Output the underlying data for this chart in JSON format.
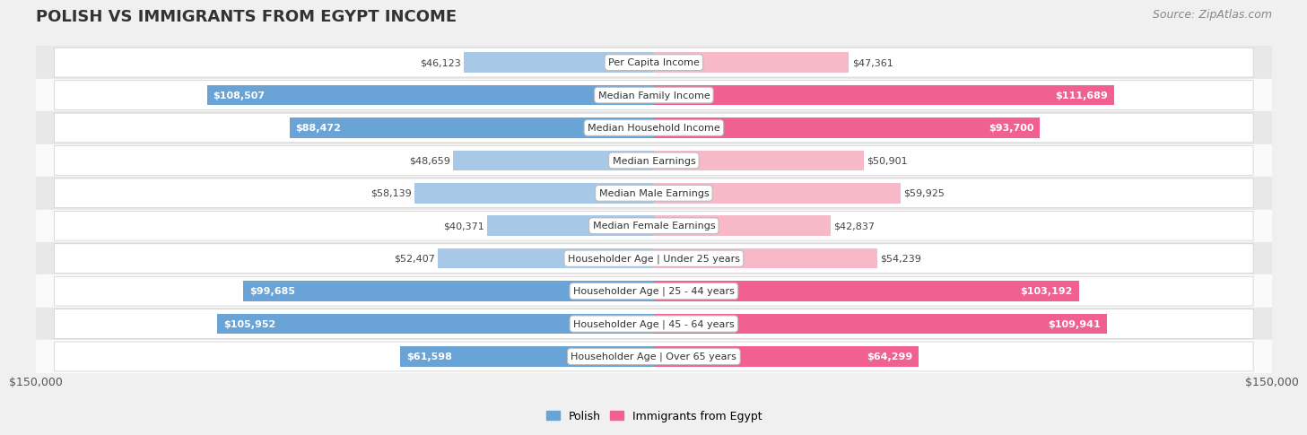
{
  "title": "Polish vs Immigrants from Egypt Income",
  "source": "Source: ZipAtlas.com",
  "categories": [
    "Per Capita Income",
    "Median Family Income",
    "Median Household Income",
    "Median Earnings",
    "Median Male Earnings",
    "Median Female Earnings",
    "Householder Age | Under 25 years",
    "Householder Age | 25 - 44 years",
    "Householder Age | 45 - 64 years",
    "Householder Age | Over 65 years"
  ],
  "polish_values": [
    46123,
    108507,
    88472,
    48659,
    58139,
    40371,
    52407,
    99685,
    105952,
    61598
  ],
  "egypt_values": [
    47361,
    111689,
    93700,
    50901,
    59925,
    42837,
    54239,
    103192,
    109941,
    64299
  ],
  "polish_color_light": "#a8c8e8",
  "polish_color_dark": "#6aa3d5",
  "egypt_color_light": "#f7b8c8",
  "egypt_color_dark": "#f06090",
  "polish_label": "Polish",
  "egypt_label": "Immigrants from Egypt",
  "axis_max": 150000,
  "bg_color": "#f0f0f0",
  "row_color_light": "#fafafa",
  "row_color_dark": "#e8e8e8",
  "title_fontsize": 13,
  "source_fontsize": 9,
  "bar_label_fontsize": 8,
  "category_fontsize": 8,
  "axis_label_fontsize": 9,
  "inner_label_threshold": 60000
}
